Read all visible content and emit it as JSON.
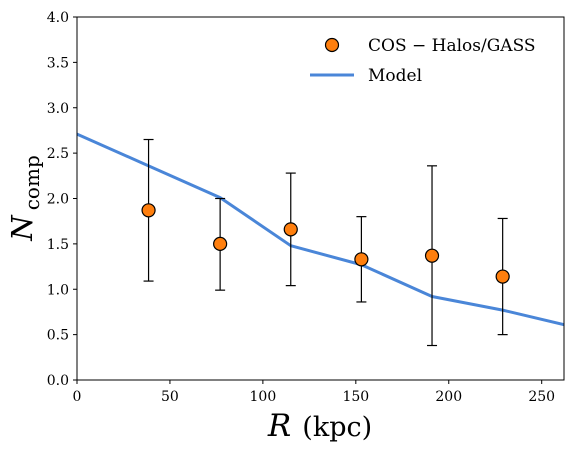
{
  "chart_data": {
    "type": "scatter",
    "xlabel": "R (kpc)",
    "xlabel_symbol": "R",
    "xlabel_unit": "(kpc)",
    "ylabel_symbol": "N",
    "ylabel_subscript": "comp",
    "xlim": [
      0,
      262
    ],
    "ylim": [
      0.0,
      4.0
    ],
    "xticks": [
      0,
      50,
      100,
      150,
      200,
      250
    ],
    "yticks": [
      0.0,
      0.5,
      1.0,
      1.5,
      2.0,
      2.5,
      3.0,
      3.5,
      4.0
    ],
    "ytick_labels": [
      "0.0",
      "0.5",
      "1.0",
      "1.5",
      "2.0",
      "2.5",
      "3.0",
      "3.5",
      "4.0"
    ],
    "grid": false,
    "legend_position": "top-right",
    "series": [
      {
        "name": "COS − Halos/GASS",
        "kind": "scatter-errorbar",
        "color": "#ff7f0e",
        "edgecolor": "#000000",
        "points": [
          {
            "x": 38.5,
            "y": 1.87,
            "ylow": 1.09,
            "yhigh": 2.65
          },
          {
            "x": 77,
            "y": 1.5,
            "ylow": 0.99,
            "yhigh": 2.0
          },
          {
            "x": 115,
            "y": 1.66,
            "ylow": 1.04,
            "yhigh": 2.28
          },
          {
            "x": 153,
            "y": 1.33,
            "ylow": 0.86,
            "yhigh": 1.8
          },
          {
            "x": 191,
            "y": 1.37,
            "ylow": 0.38,
            "yhigh": 2.36
          },
          {
            "x": 229,
            "y": 1.14,
            "ylow": 0.5,
            "yhigh": 1.78
          }
        ]
      },
      {
        "name": "Model",
        "kind": "line",
        "color": "#4a86d8",
        "points": [
          {
            "x": 0,
            "y": 2.71
          },
          {
            "x": 38.5,
            "y": 2.36
          },
          {
            "x": 77,
            "y": 2.01
          },
          {
            "x": 115,
            "y": 1.48
          },
          {
            "x": 153,
            "y": 1.27
          },
          {
            "x": 191,
            "y": 0.92
          },
          {
            "x": 229,
            "y": 0.77
          },
          {
            "x": 262,
            "y": 0.61
          }
        ]
      }
    ]
  }
}
